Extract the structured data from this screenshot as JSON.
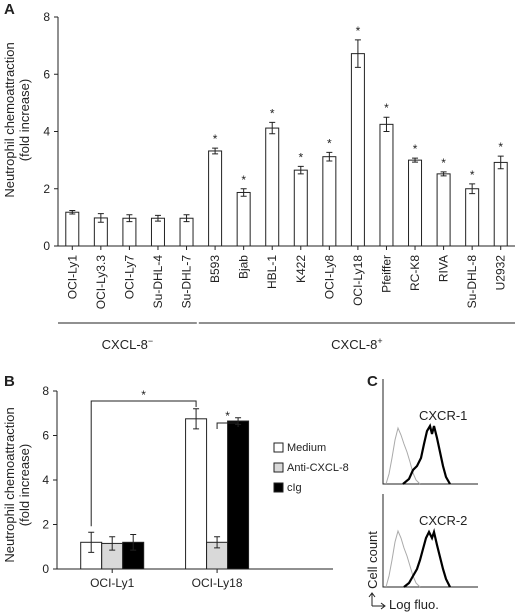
{
  "colors": {
    "text": "#222222",
    "bar_white": "#ffffff",
    "bar_gray": "#d9d9d9",
    "bar_black": "#000000",
    "axis": "#222222",
    "hist_gray": "#aaaaaa",
    "hist_black": "#000000"
  },
  "chart_data": [
    {
      "panel": "A",
      "type": "bar",
      "ylabel_line1": "Neutrophil chemoattraction",
      "ylabel_line2": "(fold increase)",
      "ylim": [
        0,
        8
      ],
      "yticks": [
        "0",
        "2",
        "4",
        "6",
        "8"
      ],
      "ytick_values": [
        0,
        2,
        4,
        6,
        8
      ],
      "categories": [
        "OCI-Ly1",
        "OCI-Ly3.3",
        "OCI-Ly7",
        "Su-DHL-4",
        "Su-DHL-7",
        "B593",
        "Bjab",
        "HBL-1",
        "K422",
        "OCI-Ly8",
        "OCI-Ly18",
        "Pfeiffer",
        "RC-K8",
        "RIVA",
        "Su-DHL-8",
        "U2932"
      ],
      "values": [
        1.18,
        0.98,
        0.97,
        0.97,
        0.97,
        3.32,
        1.87,
        4.12,
        2.65,
        3.12,
        6.72,
        4.25,
        3.0,
        2.52,
        2.0,
        2.92
      ],
      "errors": [
        0.06,
        0.15,
        0.12,
        0.1,
        0.12,
        0.1,
        0.13,
        0.2,
        0.13,
        0.15,
        0.48,
        0.25,
        0.07,
        0.07,
        0.17,
        0.22
      ],
      "significant": [
        false,
        false,
        false,
        false,
        false,
        true,
        true,
        true,
        true,
        true,
        true,
        true,
        true,
        true,
        true,
        true
      ],
      "star": "*",
      "groups": [
        {
          "label": "CXCL-8",
          "sup": "−",
          "from": 0,
          "to": 4
        },
        {
          "label": "CXCL-8",
          "sup": "+",
          "from": 5,
          "to": 15
        }
      ],
      "grid": false
    },
    {
      "panel": "B",
      "type": "bar",
      "ylabel_line1": "Neutrophil chemoattraction",
      "ylabel_line2": "(fold increase)",
      "ylim": [
        0,
        8
      ],
      "yticks": [
        "0",
        "2",
        "4",
        "6",
        "8"
      ],
      "ytick_values": [
        0,
        2,
        4,
        6,
        8
      ],
      "categories": [
        "OCI-Ly1",
        "OCI-Ly18"
      ],
      "series": [
        {
          "name": "Medium",
          "color": "#ffffff",
          "values": [
            1.2,
            6.75
          ],
          "errors": [
            0.45,
            0.45
          ]
        },
        {
          "name": "Anti-CXCL-8",
          "color": "#d9d9d9",
          "values": [
            1.15,
            1.2
          ],
          "errors": [
            0.3,
            0.25
          ]
        },
        {
          "name": "cIg",
          "color": "#000000",
          "values": [
            1.2,
            6.65
          ],
          "errors": [
            0.35,
            0.15
          ]
        }
      ],
      "legend_position": "right",
      "brackets": [
        {
          "from": "OCI-Ly1 Medium",
          "to": "OCI-Ly18 Medium",
          "label": "*"
        },
        {
          "from": "OCI-Ly18 Anti-CXCL-8",
          "to": "OCI-Ly18 cIg",
          "label": "*"
        }
      ],
      "grid": false
    }
  ],
  "panel_c": {
    "panel": "C",
    "histograms": [
      {
        "label": "CXCR-1"
      },
      {
        "label": "CXCR-2"
      }
    ],
    "ylabel": "Cell count",
    "xlabel": "Log fluo."
  }
}
